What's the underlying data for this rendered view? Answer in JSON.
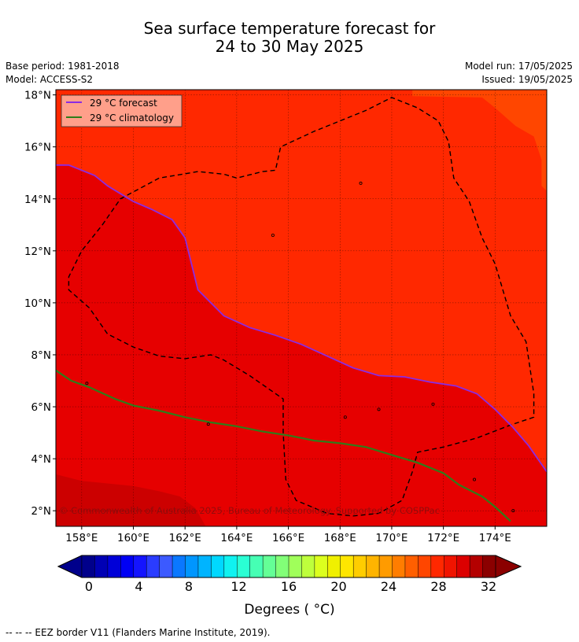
{
  "header": {
    "title_line1": "Sea surface temperature forecast for",
    "title_line2": "24 to 30 May 2025",
    "base_period": "Base period: 1981-2018",
    "model": "Model: ACCESS-S2",
    "model_run": "Model run: 17/05/2025",
    "issued": "Issued: 19/05/2025"
  },
  "legend": {
    "forecast_label": "29 °C  forecast",
    "climatology_label": "29 °C  climatology",
    "forecast_color": "#8b2be2",
    "climatology_color": "#2e7d1a"
  },
  "copyright": "© Commonwealth of Australia 2025, Bureau of Meteorology. Supported by COSPPac",
  "footer": "--  --  -- EEZ border V11 (Flanders Marine Institute, 2019).",
  "colorbar": {
    "units": "Degrees ( °C)",
    "tick_labels": [
      "0",
      "4",
      "8",
      "12",
      "16",
      "20",
      "24",
      "28",
      "32"
    ],
    "colors": [
      "#00008b",
      "#0000b4",
      "#0000d8",
      "#0000f4",
      "#1414ff",
      "#2a3cff",
      "#3c5aff",
      "#0a78ff",
      "#0096ff",
      "#00b4ff",
      "#00d8ff",
      "#10f2f0",
      "#2affd4",
      "#46ffb4",
      "#64ff96",
      "#82ff78",
      "#a0ff5a",
      "#beff3c",
      "#dcff1e",
      "#f0f000",
      "#ffe600",
      "#ffcd00",
      "#ffb400",
      "#ff9b00",
      "#ff7d00",
      "#ff5f00",
      "#ff4600",
      "#ff2800",
      "#f01400",
      "#dc0000",
      "#b40000",
      "#8b0000"
    ]
  },
  "chart_data": {
    "type": "map",
    "x_tick_labels": [
      "158°E",
      "160°E",
      "162°E",
      "164°E",
      "166°E",
      "168°E",
      "170°E",
      "172°E",
      "174°E"
    ],
    "y_tick_labels": [
      "2°N",
      "4°N",
      "6°N",
      "8°N",
      "10°N",
      "12°N",
      "14°N",
      "16°N",
      "18°N"
    ],
    "xlim": [
      157,
      176
    ],
    "ylim": [
      1.4,
      18.2
    ],
    "grid": true,
    "legend_position": "top-left",
    "temperature_zones_degC": [
      {
        "band": "29-30",
        "color": "#ff2800",
        "region": "north"
      },
      {
        "band": "30-31",
        "color": "#e60000",
        "region": "south of 29 °C forecast line"
      },
      {
        "band": "31-32",
        "color": "#cc0000",
        "region": "far south-west corner"
      },
      {
        "band": "28-29",
        "color": "#ff4600",
        "region": "north-east corner"
      }
    ],
    "series": [
      {
        "name": "29 °C  forecast",
        "points": [
          [
            157.0,
            15.3
          ],
          [
            157.5,
            15.3
          ],
          [
            158.5,
            14.9
          ],
          [
            159.0,
            14.5
          ],
          [
            160.0,
            13.9
          ],
          [
            160.7,
            13.6
          ],
          [
            161.5,
            13.2
          ],
          [
            162.0,
            12.5
          ],
          [
            162.5,
            10.5
          ],
          [
            163.5,
            9.5
          ],
          [
            164.5,
            9.05
          ],
          [
            165.5,
            8.75
          ],
          [
            166.5,
            8.4
          ],
          [
            167.5,
            7.95
          ],
          [
            168.5,
            7.5
          ],
          [
            169.5,
            7.2
          ],
          [
            170.5,
            7.15
          ],
          [
            171.5,
            6.95
          ],
          [
            172.5,
            6.8
          ],
          [
            173.3,
            6.5
          ],
          [
            174.0,
            5.9
          ],
          [
            174.7,
            5.2
          ],
          [
            175.3,
            4.5
          ],
          [
            176.0,
            3.5
          ]
        ]
      },
      {
        "name": "29 °C  climatology",
        "points": [
          [
            157.0,
            7.4
          ],
          [
            157.6,
            7.0
          ],
          [
            158.3,
            6.75
          ],
          [
            159.3,
            6.3
          ],
          [
            160.0,
            6.05
          ],
          [
            161.0,
            5.85
          ],
          [
            162.0,
            5.6
          ],
          [
            163.0,
            5.4
          ],
          [
            164.0,
            5.25
          ],
          [
            165.0,
            5.05
          ],
          [
            166.0,
            4.9
          ],
          [
            167.0,
            4.7
          ],
          [
            168.0,
            4.6
          ],
          [
            169.0,
            4.45
          ],
          [
            170.0,
            4.15
          ],
          [
            171.0,
            3.85
          ],
          [
            172.0,
            3.45
          ],
          [
            172.6,
            3.0
          ],
          [
            173.5,
            2.55
          ],
          [
            174.0,
            2.15
          ],
          [
            174.6,
            1.6
          ]
        ]
      }
    ],
    "eez_border": [
      [
        158.8,
        13.0
      ],
      [
        159.5,
        14.0
      ],
      [
        161.0,
        14.8
      ],
      [
        162.5,
        15.05
      ],
      [
        163.5,
        14.95
      ],
      [
        164.0,
        14.8
      ],
      [
        165.0,
        15.05
      ],
      [
        165.5,
        15.1
      ],
      [
        165.7,
        16.0
      ],
      [
        167.0,
        16.6
      ],
      [
        169.0,
        17.4
      ],
      [
        170.0,
        17.9
      ],
      [
        171.0,
        17.5
      ],
      [
        171.8,
        17.0
      ],
      [
        172.2,
        16.2
      ],
      [
        172.4,
        14.8
      ],
      [
        173.0,
        13.9
      ],
      [
        173.5,
        12.5
      ],
      [
        174.0,
        11.5
      ],
      [
        174.6,
        9.5
      ],
      [
        175.2,
        8.5
      ],
      [
        175.5,
        6.5
      ],
      [
        175.5,
        5.6
      ],
      [
        174.6,
        5.3
      ],
      [
        173.3,
        4.8
      ],
      [
        172.0,
        4.45
      ],
      [
        171.0,
        4.25
      ],
      [
        170.8,
        3.5
      ],
      [
        170.4,
        2.4
      ],
      [
        169.5,
        1.9
      ],
      [
        168.5,
        1.8
      ],
      [
        167.5,
        1.9
      ],
      [
        166.3,
        2.4
      ],
      [
        165.9,
        3.2
      ],
      [
        165.8,
        5.0
      ],
      [
        165.8,
        6.3
      ],
      [
        164.5,
        7.2
      ],
      [
        163.5,
        7.8
      ],
      [
        163.0,
        8.0
      ],
      [
        162.0,
        7.85
      ],
      [
        161.0,
        7.95
      ],
      [
        160.0,
        8.3
      ],
      [
        159.0,
        8.8
      ],
      [
        158.3,
        9.8
      ],
      [
        157.5,
        10.5
      ],
      [
        157.5,
        11.0
      ],
      [
        158.0,
        12.0
      ],
      [
        158.8,
        13.0
      ]
    ],
    "islands": [
      [
        158.2,
        6.9
      ],
      [
        162.9,
        5.33
      ],
      [
        173.2,
        3.2
      ],
      [
        174.7,
        2.0
      ],
      [
        171.6,
        6.1
      ],
      [
        169.5,
        5.9
      ],
      [
        168.2,
        5.6
      ],
      [
        165.4,
        12.6
      ],
      [
        168.8,
        14.6
      ]
    ]
  }
}
